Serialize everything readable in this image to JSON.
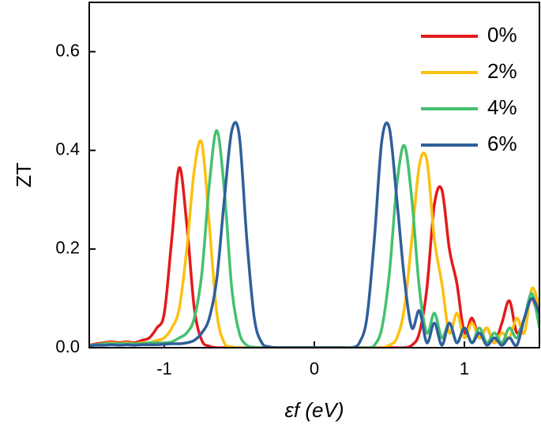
{
  "chart_data": {
    "type": "line",
    "x_label": "εf (eV)",
    "y_label": "ZT",
    "x": [
      -1.5,
      -1.45,
      -1.4,
      -1.35,
      -1.3,
      -1.25,
      -1.2,
      -1.15,
      -1.1,
      -1.05,
      -1.0,
      -0.95,
      -0.9,
      -0.85,
      -0.8,
      -0.75,
      -0.7,
      -0.65,
      -0.6,
      -0.55,
      -0.5,
      -0.45,
      -0.4,
      -0.35,
      -0.3,
      -0.25,
      -0.2,
      -0.15,
      -0.1,
      -0.05,
      0,
      0.05,
      0.1,
      0.15,
      0.2,
      0.25,
      0.3,
      0.35,
      0.4,
      0.45,
      0.5,
      0.55,
      0.6,
      0.65,
      0.7,
      0.75,
      0.8,
      0.85,
      0.9,
      0.95,
      1.0,
      1.05,
      1.1,
      1.15,
      1.2,
      1.25,
      1.3,
      1.35,
      1.4,
      1.45,
      1.5
    ],
    "series": [
      {
        "name": "0%",
        "color": "#e31a1c",
        "values": [
          0.005,
          0.008,
          0.01,
          0.012,
          0.01,
          0.012,
          0.01,
          0.015,
          0.02,
          0.04,
          0.07,
          0.22,
          0.365,
          0.25,
          0.08,
          0.015,
          0.003,
          0,
          0,
          0,
          0,
          0,
          0,
          0,
          0,
          0,
          0,
          0,
          0,
          0,
          0,
          0,
          0,
          0,
          0,
          0,
          0,
          0,
          0,
          0,
          0,
          0,
          0,
          0.005,
          0.03,
          0.12,
          0.29,
          0.32,
          0.2,
          0.13,
          0.03,
          0.06,
          0.02,
          0.04,
          0.01,
          0.05,
          0.095,
          0.03,
          0.06,
          0.1,
          0.05
        ]
      },
      {
        "name": "2%",
        "color": "#fdc010",
        "values": [
          0.005,
          0.006,
          0.008,
          0.01,
          0.008,
          0.01,
          0.008,
          0.01,
          0.01,
          0.015,
          0.02,
          0.04,
          0.08,
          0.2,
          0.36,
          0.415,
          0.25,
          0.07,
          0.01,
          0.002,
          0,
          0,
          0,
          0,
          0,
          0,
          0,
          0,
          0,
          0,
          0,
          0,
          0,
          0,
          0,
          0,
          0,
          0,
          0,
          0,
          0.005,
          0.02,
          0.08,
          0.22,
          0.37,
          0.38,
          0.22,
          0.13,
          0.03,
          0.07,
          0.02,
          0.05,
          0.02,
          0.04,
          0.01,
          0.03,
          0.02,
          0.06,
          0.03,
          0.12,
          0.08
        ]
      },
      {
        "name": "4%",
        "color": "#45c06f",
        "values": [
          0.005,
          0.006,
          0.008,
          0.008,
          0.008,
          0.008,
          0.008,
          0.008,
          0.01,
          0.01,
          0.01,
          0.012,
          0.02,
          0.03,
          0.06,
          0.15,
          0.33,
          0.44,
          0.32,
          0.12,
          0.03,
          0.005,
          0.001,
          0,
          0,
          0,
          0,
          0,
          0,
          0,
          0,
          0,
          0,
          0,
          0,
          0,
          0,
          0,
          0.005,
          0.04,
          0.15,
          0.33,
          0.41,
          0.3,
          0.12,
          0.03,
          0.07,
          0.02,
          0.05,
          0.01,
          0.04,
          0.01,
          0.04,
          0.01,
          0.03,
          0.01,
          0.04,
          0.02,
          0.06,
          0.11,
          0.04
        ]
      },
      {
        "name": "6%",
        "color": "#2f5f9a",
        "values": [
          0.004,
          0.005,
          0.005,
          0.006,
          0.005,
          0.006,
          0.005,
          0.006,
          0.006,
          0.006,
          0.007,
          0.008,
          0.008,
          0.01,
          0.015,
          0.03,
          0.06,
          0.14,
          0.3,
          0.44,
          0.43,
          0.22,
          0.06,
          0.01,
          0.002,
          0,
          0,
          0,
          0,
          0,
          0,
          0,
          0,
          0,
          0,
          0,
          0.01,
          0.06,
          0.22,
          0.42,
          0.445,
          0.3,
          0.14,
          0.04,
          0.075,
          0.01,
          0.05,
          0.005,
          0.05,
          0.01,
          0.04,
          0.01,
          0.03,
          0.005,
          0.02,
          0.005,
          0.02,
          0.005,
          0.06,
          0.1,
          0.07
        ]
      }
    ],
    "xlim": [
      -1.5,
      1.5
    ],
    "xticks": [
      -1,
      0,
      1
    ],
    "ylim": [
      0,
      0.7
    ],
    "yticks": [
      {
        "value": 0,
        "label": "0.0"
      },
      0.2,
      0.4,
      0.6
    ],
    "legend": "upper right"
  }
}
